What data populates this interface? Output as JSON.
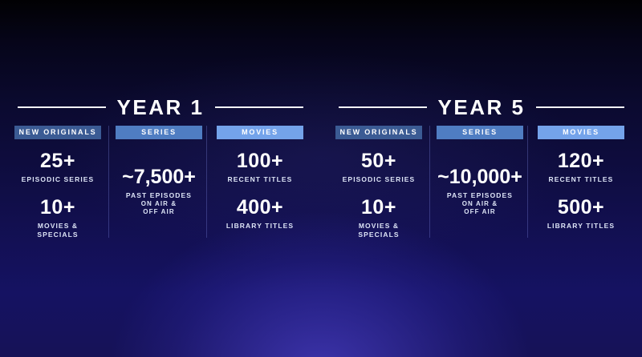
{
  "slide": {
    "colors": {
      "background_top": "#010103",
      "background_bottom_center": "#332e9e",
      "background_bottom_corner": "#0d0c40",
      "badge_new_originals": "#3b5b94",
      "badge_series": "#4f7dc2",
      "badge_movies": "#74a3ea",
      "text": "#ffffff",
      "caption_text": "#dde4f6"
    },
    "years": [
      {
        "title": "YEAR 1",
        "columns": [
          {
            "badge": "NEW ORIGINALS",
            "badge_color": "#3b5b94",
            "stats": [
              {
                "value": "25+",
                "caption": [
                  "EPISODIC SERIES"
                ]
              },
              {
                "value": "10+",
                "caption": [
                  "MOVIES &",
                  "SPECIALS"
                ]
              }
            ]
          },
          {
            "badge": "SERIES",
            "badge_color": "#4f7dc2",
            "stats": [
              {
                "value": "~7,500+",
                "caption": [
                  "PAST EPISODES",
                  "ON AIR &",
                  "OFF AIR"
                ]
              }
            ]
          },
          {
            "badge": "MOVIES",
            "badge_color": "#74a3ea",
            "stats": [
              {
                "value": "100+",
                "caption": [
                  "RECENT TITLES"
                ]
              },
              {
                "value": "400+",
                "caption": [
                  "LIBRARY TITLES"
                ]
              }
            ]
          }
        ]
      },
      {
        "title": "YEAR 5",
        "columns": [
          {
            "badge": "NEW ORIGINALS",
            "badge_color": "#3b5b94",
            "stats": [
              {
                "value": "50+",
                "caption": [
                  "EPISODIC SERIES"
                ]
              },
              {
                "value": "10+",
                "caption": [
                  "MOVIES &",
                  "SPECIALS"
                ]
              }
            ]
          },
          {
            "badge": "SERIES",
            "badge_color": "#4f7dc2",
            "stats": [
              {
                "value": "~10,000+",
                "caption": [
                  "PAST EPISODES",
                  "ON AIR &",
                  "OFF AIR"
                ]
              }
            ]
          },
          {
            "badge": "MOVIES",
            "badge_color": "#74a3ea",
            "stats": [
              {
                "value": "120+",
                "caption": [
                  "RECENT TITLES"
                ]
              },
              {
                "value": "500+",
                "caption": [
                  "LIBRARY TITLES"
                ]
              }
            ]
          }
        ]
      }
    ]
  }
}
